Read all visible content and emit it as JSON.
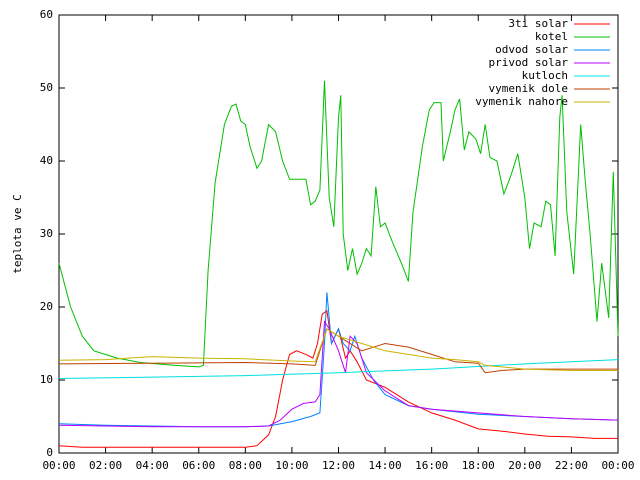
{
  "chart_data": {
    "type": "line",
    "y_label": "teplota ve C",
    "xlim": [
      0,
      24
    ],
    "ylim": [
      0,
      60
    ],
    "yticks": [
      0,
      10,
      20,
      30,
      40,
      50,
      60
    ],
    "xticks": [
      {
        "value": 0,
        "label": "00:00"
      },
      {
        "value": 2,
        "label": "02:00"
      },
      {
        "value": 4,
        "label": "04:00"
      },
      {
        "value": 6,
        "label": "06:00"
      },
      {
        "value": 8,
        "label": "08:00"
      },
      {
        "value": 10,
        "label": "10:00"
      },
      {
        "value": 12,
        "label": "12:00"
      },
      {
        "value": 14,
        "label": "14:00"
      },
      {
        "value": 16,
        "label": "16:00"
      },
      {
        "value": 18,
        "label": "18:00"
      },
      {
        "value": 20,
        "label": "20:00"
      },
      {
        "value": 22,
        "label": "22:00"
      },
      {
        "value": 24,
        "label": "00:00"
      }
    ],
    "legend": "top-right",
    "series": [
      {
        "name": "3ti solar",
        "color": "#ff0000",
        "x": [
          0,
          1,
          5,
          8,
          8.5,
          9,
          9.3,
          9.6,
          9.9,
          10.2,
          10.6,
          10.9,
          11.1,
          11.3,
          11.5,
          11.7,
          12,
          12.3,
          12.5,
          12.8,
          13.2,
          14,
          15,
          16,
          17,
          18,
          19,
          20,
          21,
          22,
          23,
          24
        ],
        "values": [
          1,
          0.8,
          0.8,
          0.8,
          1,
          2.5,
          5,
          10,
          13.5,
          14,
          13.5,
          13,
          15,
          19,
          19.5,
          15,
          17,
          13,
          14,
          12.5,
          10,
          9,
          7,
          5.5,
          4.5,
          3.3,
          3,
          2.6,
          2.3,
          2.2,
          2,
          2
        ]
      },
      {
        "name": "kotel",
        "color": "#00c000",
        "x": [
          0,
          0.5,
          1,
          1.5,
          2.5,
          3.5,
          5,
          6,
          6.2,
          6.4,
          6.7,
          7.1,
          7.4,
          7.6,
          7.8,
          8,
          8.2,
          8.5,
          8.7,
          9,
          9.3,
          9.6,
          9.9,
          10.4,
          10.6,
          10.8,
          11,
          11.2,
          11.4,
          11.6,
          11.8,
          12,
          12.1,
          12.2,
          12.4,
          12.6,
          12.8,
          13,
          13.2,
          13.4,
          13.6,
          13.8,
          14,
          14.3,
          14.7,
          15,
          15.2,
          15.6,
          15.9,
          16.1,
          16.4,
          16.5,
          16.8,
          17,
          17.2,
          17.4,
          17.6,
          17.9,
          18.1,
          18.3,
          18.5,
          18.8,
          19.1,
          19.4,
          19.7,
          20,
          20.2,
          20.4,
          20.7,
          20.9,
          21.1,
          21.3,
          21.5,
          21.6,
          21.8,
          22.1,
          22.4,
          22.6,
          22.8,
          23.1,
          23.3,
          23.6,
          23.8,
          24
        ],
        "values": [
          26,
          20,
          16,
          14,
          13,
          12.4,
          12,
          11.8,
          12,
          25,
          37,
          45,
          47.5,
          47.8,
          45.5,
          45,
          42,
          39,
          40,
          45,
          44,
          40,
          37.5,
          37.5,
          37.5,
          34,
          34.5,
          36,
          51,
          35,
          31,
          46,
          49,
          30,
          25,
          28,
          24.5,
          26,
          28,
          27,
          36.5,
          31,
          31.5,
          29,
          26,
          23.5,
          33,
          42,
          47,
          48,
          48,
          40,
          44,
          47,
          48.5,
          41.5,
          44,
          43,
          41,
          45,
          40.5,
          40,
          35.5,
          38,
          41,
          35,
          28,
          31.5,
          31,
          34.5,
          34,
          27,
          46,
          49,
          33,
          24.5,
          45,
          37,
          30,
          18,
          26,
          18.5,
          38.5,
          16
        ]
      },
      {
        "name": "odvod solar",
        "color": "#0080ff",
        "x": [
          0,
          2,
          4,
          6,
          8,
          9,
          10,
          10.8,
          11.2,
          11.4,
          11.5,
          11.7,
          12,
          12.2,
          12.5,
          12.7,
          13,
          13.5,
          14,
          15,
          16,
          18,
          20,
          22,
          24
        ],
        "values": [
          4,
          3.8,
          3.7,
          3.6,
          3.6,
          3.7,
          4.3,
          5,
          5.5,
          15,
          22,
          15,
          17,
          15,
          14,
          16,
          13,
          10,
          8,
          6.5,
          6,
          5.3,
          5,
          4.7,
          4.5
        ]
      },
      {
        "name": "privod solar",
        "color": "#c000ff",
        "x": [
          0,
          4,
          8,
          9,
          9.5,
          10,
          10.5,
          11,
          11.2,
          11.4,
          11.6,
          12,
          12.3,
          12.5,
          12.8,
          13.2,
          14,
          15,
          16,
          18,
          20,
          22,
          24
        ],
        "values": [
          3.8,
          3.6,
          3.6,
          3.7,
          4.5,
          6,
          6.8,
          7,
          8,
          18,
          17,
          14,
          11,
          16,
          15,
          11,
          8.5,
          6.5,
          6,
          5.5,
          5,
          4.7,
          4.5
        ]
      },
      {
        "name": "kutloch",
        "color": "#00e0e0",
        "x": [
          0,
          4,
          8,
          12,
          16,
          20,
          24
        ],
        "values": [
          10.2,
          10.4,
          10.6,
          11,
          11.5,
          12.2,
          12.8
        ]
      },
      {
        "name": "vymenik dole",
        "color": "#c04000",
        "x": [
          0,
          4,
          8,
          10,
          11,
          11.5,
          12,
          13,
          14,
          15,
          16,
          17,
          18,
          18.3,
          19,
          20,
          22,
          24
        ],
        "values": [
          12.2,
          12.3,
          12.4,
          12.2,
          12,
          17,
          16,
          14,
          15,
          14.5,
          13.5,
          12.5,
          12.3,
          11,
          11.3,
          11.5,
          11.5,
          11.5
        ]
      },
      {
        "name": "vymenik nahore",
        "color": "#c8b400",
        "x": [
          0,
          2,
          4,
          6,
          8,
          10,
          11,
          11.5,
          12,
          13,
          14,
          15,
          16,
          17,
          18,
          18.3,
          19,
          20,
          22,
          24
        ],
        "values": [
          12.7,
          12.8,
          13.2,
          13,
          12.9,
          12.6,
          12.5,
          17,
          16,
          15,
          14,
          13.5,
          13,
          12.8,
          12.5,
          12,
          11.8,
          11.5,
          11.3,
          11.3
        ]
      }
    ]
  }
}
